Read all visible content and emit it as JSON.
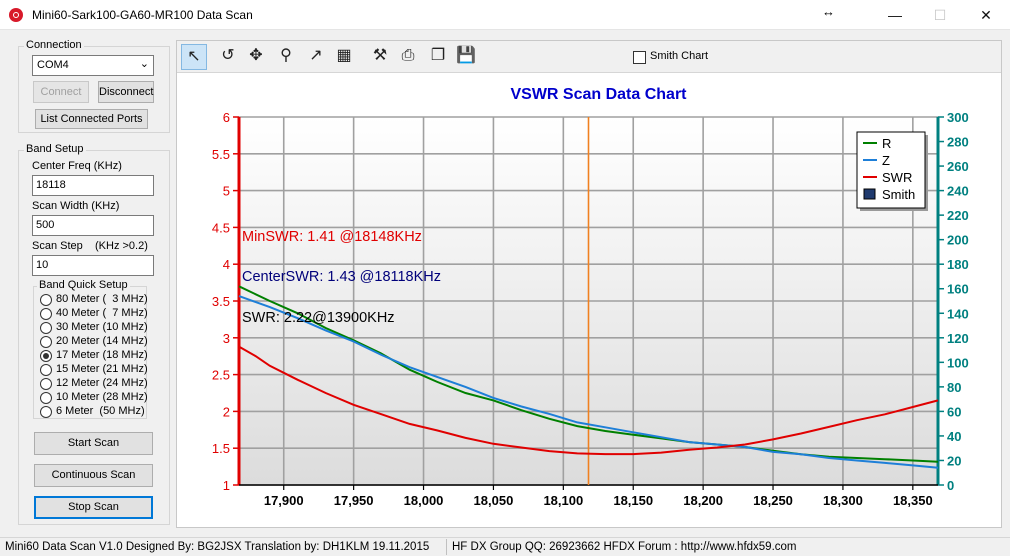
{
  "window": {
    "title": "Mini60-Sark100-GA60-MR100 Data Scan",
    "min_glyph": "—",
    "max_glyph": "☐",
    "close_glyph": "✕",
    "resize_glyph": "↔"
  },
  "connection": {
    "group_label": "Connection",
    "port_value": "COM4",
    "connect_label": "Connect",
    "disconnect_label": "Disconnect",
    "list_ports_label": "List Connected Ports"
  },
  "band_setup": {
    "group_label": "Band Setup",
    "center_freq_label": "Center Freq  (KHz)",
    "center_freq_value": "18118",
    "scan_width_label": "Scan Width   (KHz)",
    "scan_width_value": "500",
    "scan_step_label": "Scan Step",
    "scan_step_hint": "(KHz >0.2)",
    "scan_step_value": "10",
    "quick_group_label": "Band Quick Setup",
    "bands": [
      {
        "label": "80 Meter (  3 MHz)",
        "checked": false
      },
      {
        "label": "40 Meter (  7 MHz)",
        "checked": false
      },
      {
        "label": "30 Meter (10 MHz)",
        "checked": false
      },
      {
        "label": "20 Meter (14 MHz)",
        "checked": false
      },
      {
        "label": "17 Meter (18 MHz)",
        "checked": true
      },
      {
        "label": "15 Meter (21 MHz)",
        "checked": false
      },
      {
        "label": "12 Meter (24 MHz)",
        "checked": false
      },
      {
        "label": "10 Meter (28 MHz)",
        "checked": false
      },
      {
        "label": "6 Meter  (50 MHz)",
        "checked": false
      }
    ]
  },
  "actions": {
    "start_scan": "Start Scan",
    "continuous_scan": "Continuous Scan",
    "stop_scan": "Stop Scan"
  },
  "toolbar": {
    "smith_chart_label": "Smith Chart",
    "smith_chart_checked": false,
    "tools": [
      {
        "name": "pointer-icon",
        "glyph": "↖"
      },
      {
        "name": "undo-icon",
        "glyph": "↺"
      },
      {
        "name": "pan-icon",
        "glyph": "✥"
      },
      {
        "name": "zoom-icon",
        "glyph": "⚲"
      },
      {
        "name": "export-icon",
        "glyph": "↗"
      },
      {
        "name": "grid-icon",
        "glyph": "▦"
      },
      {
        "name": "settings-icon",
        "glyph": "⚒"
      },
      {
        "name": "print-icon",
        "glyph": "⎙"
      },
      {
        "name": "copy-icon",
        "glyph": "❐"
      },
      {
        "name": "save-icon",
        "glyph": "💾"
      }
    ]
  },
  "chart_data": {
    "type": "line",
    "title": "VSWR Scan Data Chart",
    "xlim": [
      17868,
      18368
    ],
    "x_ticks": [
      17900,
      17950,
      18000,
      18050,
      18100,
      18150,
      18200,
      18250,
      18300,
      18350
    ],
    "x_tick_labels": [
      "17,900",
      "17,950",
      "18,000",
      "18,050",
      "18,100",
      "18,150",
      "18,200",
      "18,250",
      "18,300",
      "18,350"
    ],
    "y_left_lim": [
      1,
      6
    ],
    "y_left_ticks": [
      "1",
      "1.5",
      "2",
      "2.5",
      "3",
      "3.5",
      "4",
      "4.5",
      "5",
      "5.5",
      "6"
    ],
    "y_right_lim": [
      0,
      300
    ],
    "y_right_ticks": [
      "0",
      "20",
      "40",
      "60",
      "80",
      "100",
      "120",
      "140",
      "160",
      "180",
      "200",
      "220",
      "240",
      "260",
      "280",
      "300"
    ],
    "center_marker_x": 18118,
    "grid": true,
    "legend_position": "top-right",
    "legend": [
      {
        "name": "R",
        "color": "#008000",
        "kind": "line"
      },
      {
        "name": "Z",
        "color": "#1e7fd8",
        "kind": "line"
      },
      {
        "name": "SWR",
        "color": "#e00000",
        "kind": "line"
      },
      {
        "name": "Smith",
        "color": "#1f3a6e",
        "kind": "box"
      }
    ],
    "annotations": {
      "min_swr": "MinSWR: 1.41 @18148KHz",
      "center_swr": "CenterSWR: 1.43 @18118KHz",
      "swr": "SWR: 2.22@13900KHz"
    },
    "colors": {
      "title": "#0000cc",
      "left_axis": "#e00000",
      "right_axis": "#008080",
      "marker": "#f08020",
      "min_swr_text": "#e00000",
      "center_swr_text": "#00007a",
      "swr_text": "#000000"
    },
    "series": [
      {
        "name": "R",
        "axis": "right",
        "color": "#008000",
        "x": [
          17868,
          17890,
          17910,
          17930,
          17950,
          17970,
          17990,
          18010,
          18030,
          18050,
          18070,
          18090,
          18110,
          18130,
          18150,
          18170,
          18190,
          18210,
          18230,
          18250,
          18270,
          18290,
          18310,
          18330,
          18350,
          18368
        ],
        "y": [
          162,
          150,
          140,
          128,
          118,
          107,
          94,
          84,
          75,
          69,
          61,
          54,
          48,
          44,
          41,
          38,
          35,
          33,
          31,
          28,
          25,
          23,
          22,
          21,
          20,
          19
        ]
      },
      {
        "name": "Z",
        "axis": "right",
        "color": "#1e7fd8",
        "x": [
          17868,
          17890,
          17910,
          17930,
          17950,
          17970,
          17990,
          18010,
          18030,
          18050,
          18070,
          18090,
          18110,
          18130,
          18150,
          18170,
          18190,
          18210,
          18230,
          18250,
          18270,
          18290,
          18310,
          18330,
          18350,
          18368
        ],
        "y": [
          154,
          145,
          136,
          126,
          117,
          106,
          96,
          88,
          80,
          71,
          64,
          58,
          51,
          47,
          43,
          39,
          35,
          33,
          31,
          27,
          25,
          22,
          20,
          18,
          16,
          14
        ]
      },
      {
        "name": "SWR",
        "axis": "left",
        "color": "#e00000",
        "x": [
          17868,
          17880,
          17890,
          17910,
          17930,
          17950,
          17970,
          17990,
          18010,
          18030,
          18050,
          18070,
          18090,
          18110,
          18130,
          18150,
          18170,
          18190,
          18210,
          18230,
          18250,
          18270,
          18290,
          18310,
          18330,
          18350,
          18368
        ],
        "y": [
          2.88,
          2.75,
          2.62,
          2.43,
          2.25,
          2.09,
          1.96,
          1.83,
          1.74,
          1.64,
          1.56,
          1.51,
          1.46,
          1.43,
          1.42,
          1.42,
          1.44,
          1.48,
          1.51,
          1.55,
          1.62,
          1.7,
          1.79,
          1.88,
          1.96,
          2.06,
          2.15
        ]
      }
    ]
  },
  "status": {
    "left": "Mini60 Data Scan V1.0   Designed By: BG2JSX  Translation by: DH1KLM    19.11.2015",
    "right": "HF DX Group QQ: 26923662  HFDX Forum :  http://www.hfdx59.com"
  }
}
